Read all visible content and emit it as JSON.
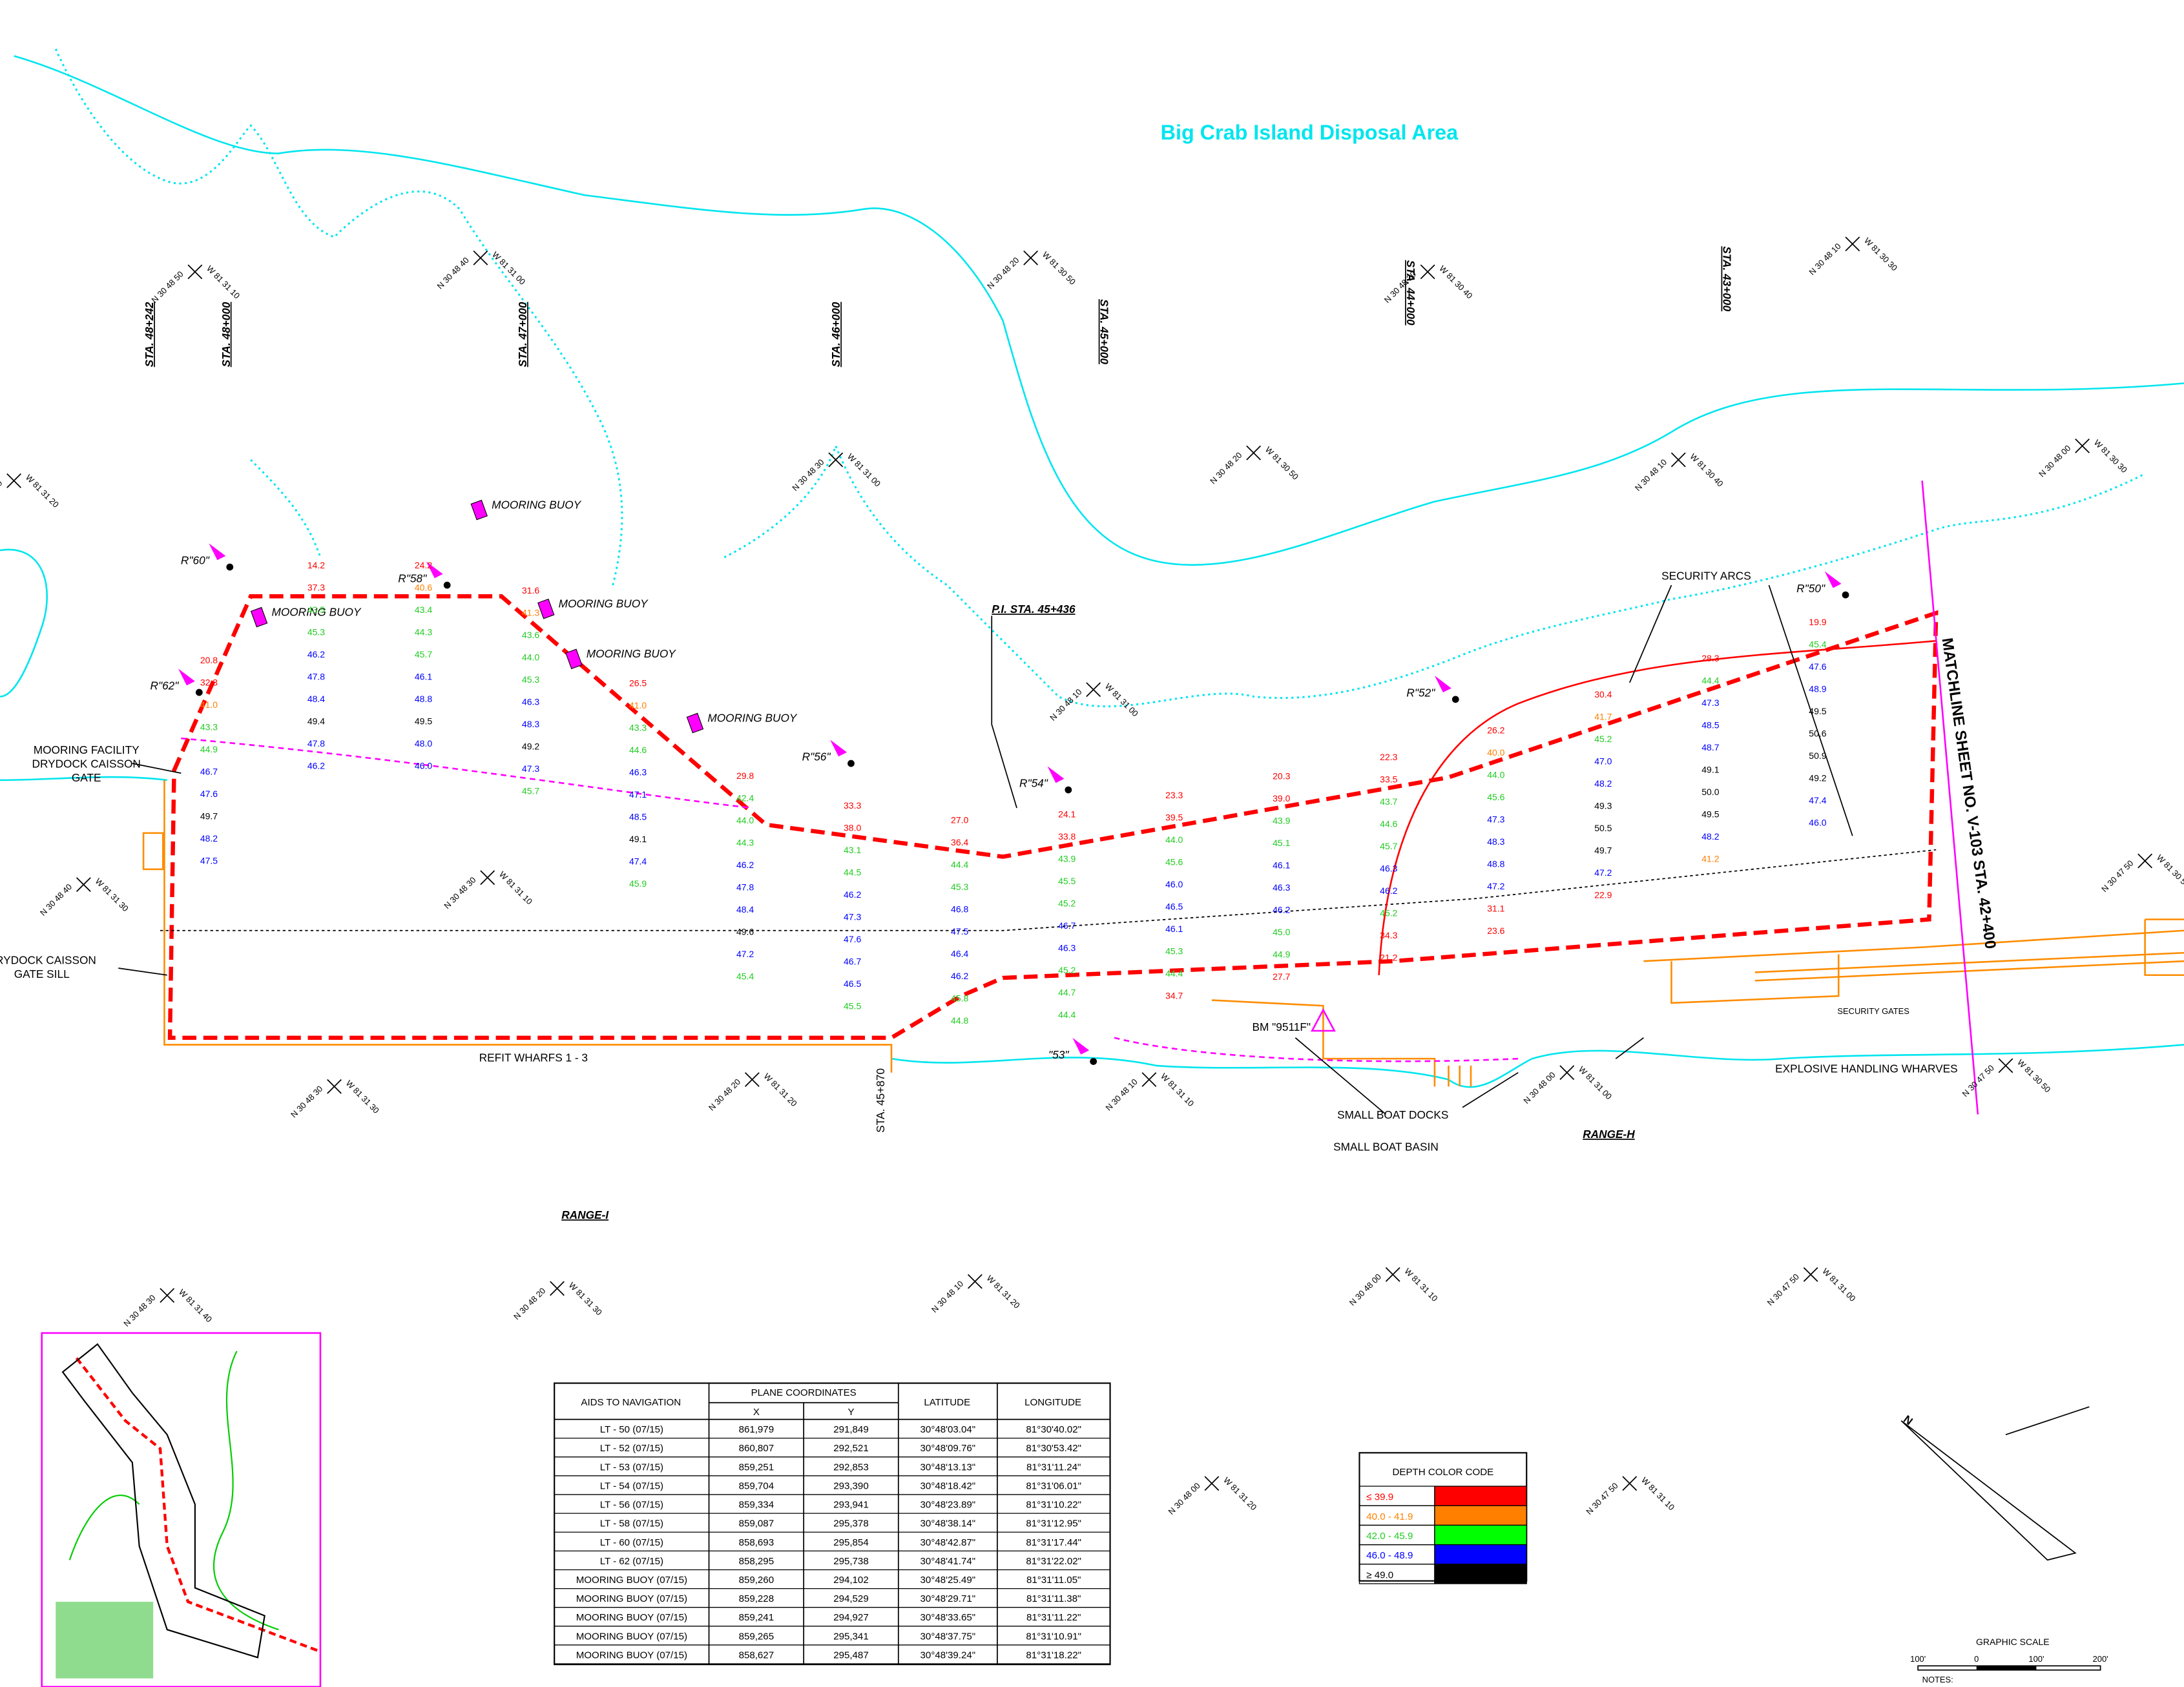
{
  "title": "Big Crab Island Disposal Area",
  "stations": [
    "STA. 48+242",
    "STA. 48+000",
    "STA. 47+000",
    "STA. 46+000",
    "STA. 45+000",
    "STA. 44+000",
    "STA. 43+000"
  ],
  "labels": {
    "mooring_facility": "MOORING FACILITY",
    "drydock_gate": "DRYDOCK CAISSON",
    "gate": "GATE",
    "gate_sill": "DRYDOCK CAISSON",
    "gate_sill2": "GATE SILL",
    "refit": "REFIT WHARFS 1 - 3",
    "range_i": "RANGE-I",
    "range_h": "RANGE-H",
    "sta_45870": "STA. 45+870",
    "pi": "P.I. STA. 45+436",
    "security_arcs": "SECURITY ARCS",
    "matchline": "MATCHLINE SHEET NO. V-103 STA. 42+400",
    "bm": "BM \"9511F\"",
    "small_boat_docks": "SMALL BOAT DOCKS",
    "small_boat_basin": "SMALL BOAT BASIN",
    "explosive": "EXPLOSIVE HANDLING WHARVES",
    "security_gates": "SECURITY GATES"
  },
  "buoys": [
    "MOORING BUOY",
    "MOORING BUOY",
    "MOORING BUOY",
    "MOORING BUOY",
    "MOORING BUOY"
  ],
  "lights": [
    "R\"60\"",
    "R\"62\"",
    "R\"58\"",
    "R\"56\"",
    "R\"54\"",
    "R\"52\"",
    "R\"50\"",
    "\"53\""
  ],
  "coords": [
    [
      "N 30 48 50",
      "W 81 31 10"
    ],
    [
      "N 30 48 40",
      "W 81 31 00"
    ],
    [
      "N 30 48 20",
      "W 81 30 50"
    ],
    [
      "N 30 48 20",
      "W 81 30 40"
    ],
    [
      "N 30 48 10",
      "W 81 30 30"
    ],
    [
      "N 30 48 40",
      "W 81 31 20"
    ],
    [
      "N 30 48 30",
      "W 81 31 00"
    ],
    [
      "N 30 48 20",
      "W 81 30 50"
    ],
    [
      "N 30 48 10",
      "W 81 30 40"
    ],
    [
      "N 30 48 00",
      "W 81 30 30"
    ],
    [
      "N 30 48 40",
      "W 81 31 30"
    ],
    [
      "N 30 48 30",
      "W 81 31 10"
    ],
    [
      "N 30 48 10",
      "W 81 31 00"
    ],
    [
      "N 30 47 50",
      "W 81 30 50"
    ],
    [
      "N 30 48 30",
      "W 81 31 30"
    ],
    [
      "N 30 48 20",
      "W 81 31 20"
    ],
    [
      "N 30 48 10",
      "W 81 31 10"
    ],
    [
      "N 30 48 00",
      "W 81 31 00"
    ],
    [
      "N 30 47 50",
      "W 81 30 50"
    ],
    [
      "N 30 48 30",
      "W 81 31 40"
    ],
    [
      "N 30 48 20",
      "W 81 31 30"
    ],
    [
      "N 30 48 10",
      "W 81 31 20"
    ],
    [
      "N 30 48 00",
      "W 81 31 10"
    ],
    [
      "N 30 47 50",
      "W 81 31 00"
    ],
    [
      "N 30 48 00",
      "W 81 31 20"
    ],
    [
      "N 30 47 50",
      "W 81 31 10"
    ]
  ],
  "soundings": [
    [
      "20.8",
      "32.3",
      "41.0",
      "43.3",
      "44.9",
      "46.7",
      "47.6",
      "49.7",
      "48.2",
      "47.5"
    ],
    [
      "14.2",
      "37.3",
      "43.5",
      "45.3",
      "46.2",
      "47.8",
      "48.4",
      "49.4",
      "47.8",
      "46.2"
    ],
    [
      "24.2",
      "40.6",
      "43.4",
      "44.3",
      "45.7",
      "46.1",
      "48.8",
      "49.5",
      "48.0",
      "46.0"
    ],
    [
      "31.6",
      "41.3",
      "43.6",
      "44.0",
      "45.3",
      "46.3",
      "48.3",
      "49.2",
      "47.3",
      "45.7"
    ],
    [
      "26.5",
      "41.0",
      "43.3",
      "44.6",
      "46.3",
      "47.1",
      "48.5",
      "49.1",
      "47.4",
      "45.9"
    ],
    [
      "29.8",
      "42.4",
      "44.0",
      "44.3",
      "46.2",
      "47.8",
      "48.4",
      "49.6",
      "47.2",
      "45.4"
    ],
    [
      "33.3",
      "38.0",
      "43.1",
      "44.5",
      "46.2",
      "47.3",
      "47.6",
      "46.7",
      "46.5",
      "45.5"
    ],
    [
      "27.0",
      "36.4",
      "44.4",
      "45.3",
      "46.8",
      "47.5",
      "46.4",
      "46.2",
      "45.8",
      "44.8"
    ],
    [
      "24.1",
      "33.8",
      "43.9",
      "45.5",
      "45.2",
      "46.7",
      "46.3",
      "45.2",
      "44.7",
      "44.4"
    ],
    [
      "23.3",
      "39.5",
      "44.0",
      "45.6",
      "46.0",
      "46.5",
      "46.1",
      "45.3",
      "44.4",
      "34.7"
    ],
    [
      "20.3",
      "39.0",
      "43.9",
      "45.1",
      "46.1",
      "46.3",
      "46.2",
      "45.0",
      "44.9",
      "27.7"
    ],
    [
      "22.3",
      "33.5",
      "43.7",
      "44.6",
      "45.7",
      "46.3",
      "46.2",
      "45.2",
      "34.3",
      "21.2"
    ],
    [
      "26.2",
      "40.0",
      "44.0",
      "45.6",
      "47.3",
      "48.3",
      "48.8",
      "47.2",
      "31.1",
      "23.6"
    ],
    [
      "30.4",
      "41.7",
      "45.2",
      "47.0",
      "48.2",
      "49.3",
      "50.5",
      "49.7",
      "47.2",
      "22.9"
    ],
    [
      "28.3",
      "44.4",
      "47.3",
      "48.5",
      "48.7",
      "49.1",
      "50.0",
      "49.5",
      "48.2",
      "41.2"
    ],
    [
      "19.9",
      "45.4",
      "47.6",
      "48.9",
      "49.5",
      "50.6",
      "50.9",
      "49.2",
      "47.4",
      "46.0"
    ]
  ],
  "table": {
    "headers": [
      "AIDS TO NAVIGATION",
      "PLANE COORDINATES",
      "LATITUDE",
      "LONGITUDE"
    ],
    "subheaders": [
      "X",
      "Y"
    ],
    "rows": [
      [
        "LT - 50 (07/15)",
        "861,979",
        "291,849",
        "30°48'03.04\"",
        "81°30'40.02\""
      ],
      [
        "LT - 52 (07/15)",
        "860,807",
        "292,521",
        "30°48'09.76\"",
        "81°30'53.42\""
      ],
      [
        "LT - 53 (07/15)",
        "859,251",
        "292,853",
        "30°48'13.13\"",
        "81°31'11.24\""
      ],
      [
        "LT - 54 (07/15)",
        "859,704",
        "293,390",
        "30°48'18.42\"",
        "81°31'06.01\""
      ],
      [
        "LT - 56 (07/15)",
        "859,334",
        "293,941",
        "30°48'23.89\"",
        "81°31'10.22\""
      ],
      [
        "LT - 58 (07/15)",
        "859,087",
        "295,378",
        "30°48'38.14\"",
        "81°31'12.95\""
      ],
      [
        "LT - 60 (07/15)",
        "858,693",
        "295,854",
        "30°48'42.87\"",
        "81°31'17.44\""
      ],
      [
        "LT - 62 (07/15)",
        "858,295",
        "295,738",
        "30°48'41.74\"",
        "81°31'22.02\""
      ],
      [
        "MOORING BUOY (07/15)",
        "859,260",
        "294,102",
        "30°48'25.49\"",
        "81°31'11.05\""
      ],
      [
        "MOORING BUOY (07/15)",
        "859,228",
        "294,529",
        "30°48'29.71\"",
        "81°31'11.38\""
      ],
      [
        "MOORING BUOY (07/15)",
        "859,241",
        "294,927",
        "30°48'33.65\"",
        "81°31'11.22\""
      ],
      [
        "MOORING BUOY (07/15)",
        "859,265",
        "295,341",
        "30°48'37.75\"",
        "81°31'10.91\""
      ],
      [
        "MOORING BUOY (07/15)",
        "858,627",
        "295,487",
        "30°48'39.24\"",
        "81°31'18.22\""
      ]
    ]
  },
  "legend": {
    "title": "DEPTH COLOR CODE",
    "items": [
      {
        "label": "≤ 39.9",
        "color": "#ff0000"
      },
      {
        "label": "40.0 - 41.9",
        "color": "#ff8000"
      },
      {
        "label": "42.0 - 45.9",
        "color": "#00ff00"
      },
      {
        "label": "46.0 - 48.9",
        "color": "#0000ff"
      },
      {
        "label": "≥ 49.0",
        "color": "#000000"
      }
    ]
  },
  "scale": {
    "title": "GRAPHIC SCALE",
    "ticks": [
      "100'",
      "0",
      "100'",
      "200'"
    ],
    "notes": "NOTES:"
  }
}
